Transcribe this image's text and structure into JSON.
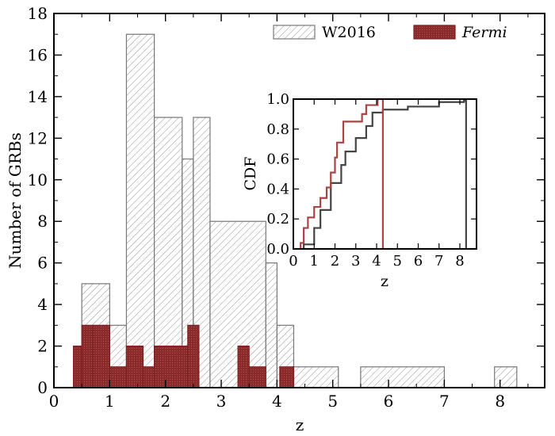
{
  "chart_data": [
    {
      "type": "histogram",
      "xlabel": "z",
      "ylabel": "Number of GRBs",
      "xlim": [
        0,
        8.8
      ],
      "ylim": [
        0,
        18
      ],
      "xticks": [
        "0",
        "1",
        "2",
        "3",
        "4",
        "5",
        "6",
        "7",
        "8"
      ],
      "yticks": [
        "0",
        "2",
        "4",
        "6",
        "8",
        "10",
        "12",
        "14",
        "16",
        "18"
      ],
      "legend_position": "top-right",
      "series": [
        {
          "name": "W2016",
          "style": "hatched",
          "color": "#777777",
          "bins": [
            {
              "x0": 0.5,
              "x1": 1.0,
              "count": 5
            },
            {
              "x0": 1.0,
              "x1": 1.3,
              "count": 3
            },
            {
              "x0": 1.3,
              "x1": 1.8,
              "count": 17
            },
            {
              "x0": 1.8,
              "x1": 2.3,
              "count": 13
            },
            {
              "x0": 2.3,
              "x1": 2.5,
              "count": 11
            },
            {
              "x0": 2.5,
              "x1": 2.8,
              "count": 13
            },
            {
              "x0": 2.8,
              "x1": 3.8,
              "count": 8
            },
            {
              "x0": 3.8,
              "x1": 4.0,
              "count": 6
            },
            {
              "x0": 4.0,
              "x1": 4.3,
              "count": 3
            },
            {
              "x0": 4.3,
              "x1": 5.1,
              "count": 1
            },
            {
              "x0": 5.5,
              "x1": 7.0,
              "count": 1
            },
            {
              "x0": 7.9,
              "x1": 8.3,
              "count": 1
            }
          ]
        },
        {
          "name": "Fermi",
          "style": "filled",
          "color": "#8b2a2a",
          "bins": [
            {
              "x0": 0.35,
              "x1": 0.5,
              "count": 2
            },
            {
              "x0": 0.5,
              "x1": 0.7,
              "count": 3
            },
            {
              "x0": 0.7,
              "x1": 1.0,
              "count": 3
            },
            {
              "x0": 1.0,
              "x1": 1.3,
              "count": 1
            },
            {
              "x0": 1.3,
              "x1": 1.6,
              "count": 2
            },
            {
              "x0": 1.6,
              "x1": 1.8,
              "count": 1
            },
            {
              "x0": 1.8,
              "x1": 2.4,
              "count": 2
            },
            {
              "x0": 2.4,
              "x1": 2.6,
              "count": 3
            },
            {
              "x0": 3.3,
              "x1": 3.5,
              "count": 2
            },
            {
              "x0": 3.5,
              "x1": 3.8,
              "count": 1
            },
            {
              "x0": 4.05,
              "x1": 4.3,
              "count": 1
            }
          ]
        }
      ]
    },
    {
      "type": "line",
      "step": true,
      "xlabel": "z",
      "ylabel": "CDF",
      "xlim": [
        0,
        8.8
      ],
      "ylim": [
        0,
        1
      ],
      "xticks": [
        "0",
        "1",
        "2",
        "3",
        "4",
        "5",
        "6",
        "7",
        "8"
      ],
      "yticks": [
        "0.0",
        "0.2",
        "0.4",
        "0.6",
        "0.8",
        "1.0"
      ],
      "series": [
        {
          "name": "W2016",
          "color": "#444444",
          "points": [
            [
              0.35,
              0
            ],
            [
              0.5,
              0
            ],
            [
              0.5,
              0.03
            ],
            [
              1.0,
              0.03
            ],
            [
              1.0,
              0.14
            ],
            [
              1.3,
              0.14
            ],
            [
              1.3,
              0.26
            ],
            [
              1.8,
              0.26
            ],
            [
              1.8,
              0.44
            ],
            [
              2.3,
              0.44
            ],
            [
              2.3,
              0.56
            ],
            [
              2.5,
              0.56
            ],
            [
              2.5,
              0.65
            ],
            [
              3.0,
              0.65
            ],
            [
              3.0,
              0.74
            ],
            [
              3.5,
              0.74
            ],
            [
              3.5,
              0.82
            ],
            [
              3.8,
              0.82
            ],
            [
              3.8,
              0.91
            ],
            [
              4.3,
              0.91
            ],
            [
              4.3,
              0.93
            ],
            [
              5.5,
              0.93
            ],
            [
              5.5,
              0.95
            ],
            [
              7.0,
              0.95
            ],
            [
              7.0,
              0.98
            ],
            [
              8.2,
              0.98
            ],
            [
              8.2,
              0.99
            ],
            [
              8.3,
              0.99
            ],
            [
              8.3,
              0
            ]
          ]
        },
        {
          "name": "Fermi",
          "color": "#a84444",
          "points": [
            [
              0.35,
              0
            ],
            [
              0.35,
              0.04
            ],
            [
              0.5,
              0.04
            ],
            [
              0.5,
              0.14
            ],
            [
              0.7,
              0.14
            ],
            [
              0.7,
              0.21
            ],
            [
              1.0,
              0.21
            ],
            [
              1.0,
              0.28
            ],
            [
              1.3,
              0.28
            ],
            [
              1.3,
              0.34
            ],
            [
              1.6,
              0.34
            ],
            [
              1.6,
              0.41
            ],
            [
              1.8,
              0.41
            ],
            [
              1.8,
              0.51
            ],
            [
              2.0,
              0.51
            ],
            [
              2.0,
              0.61
            ],
            [
              2.1,
              0.61
            ],
            [
              2.1,
              0.71
            ],
            [
              2.4,
              0.71
            ],
            [
              2.4,
              0.85
            ],
            [
              3.3,
              0.85
            ],
            [
              3.3,
              0.9
            ],
            [
              3.5,
              0.9
            ],
            [
              3.5,
              0.96
            ],
            [
              4.05,
              0.96
            ],
            [
              4.05,
              1.0
            ],
            [
              4.3,
              1.0
            ],
            [
              4.3,
              0
            ]
          ]
        }
      ]
    }
  ]
}
